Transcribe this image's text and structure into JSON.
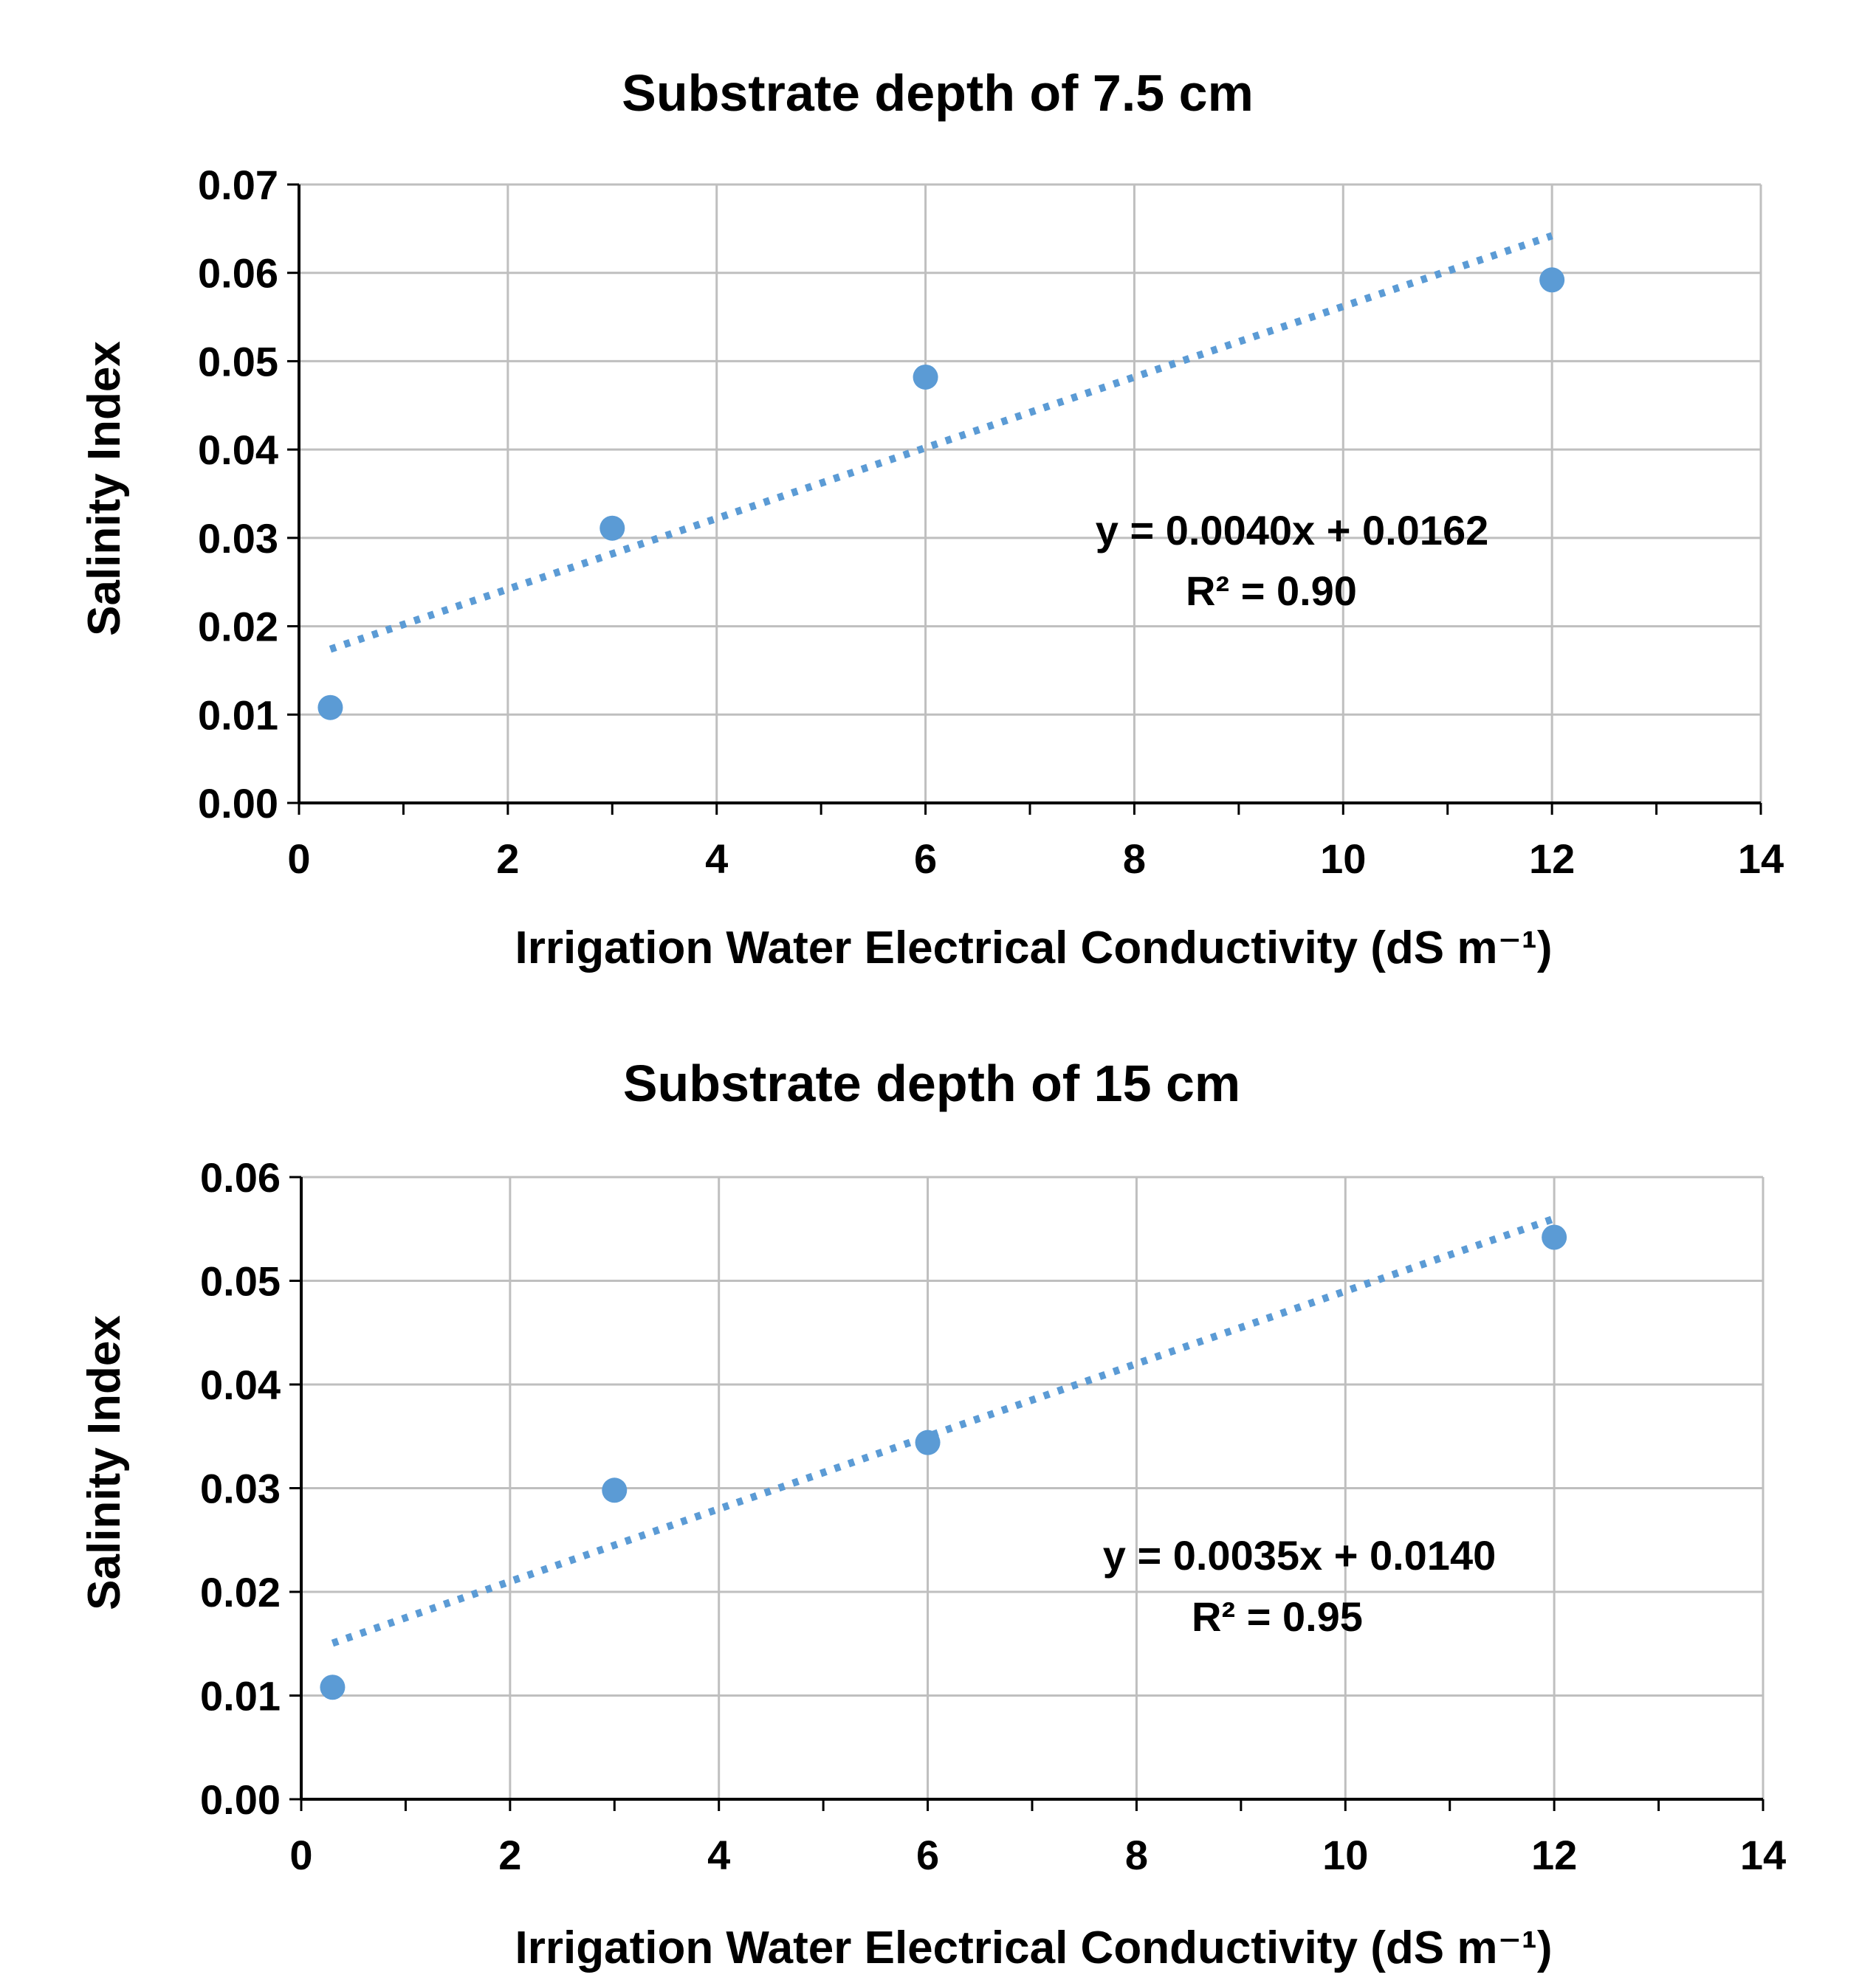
{
  "colors": {
    "marker": "#5B9BD5",
    "trendline": "#5B9BD5",
    "grid": "#BFBFBF",
    "axis": "#000000",
    "text": "#000000"
  },
  "chart_data": [
    {
      "type": "scatter",
      "title": "Substrate depth of 7.5 cm",
      "xlabel": "Irrigation Water Electrical Conductivity (dS m⁻¹)",
      "ylabel": "Salinity Index",
      "xlim": [
        0,
        14
      ],
      "ylim": [
        0,
        0.07
      ],
      "grid": true,
      "x_ticks": [
        "0",
        "2",
        "4",
        "6",
        "8",
        "10",
        "12",
        "14"
      ],
      "y_ticks": [
        "0.00",
        "0.01",
        "0.02",
        "0.03",
        "0.04",
        "0.05",
        "0.06",
        "0.07"
      ],
      "series": [
        {
          "name": "Salinity Index",
          "x": [
            0.3,
            3,
            6,
            12
          ],
          "y": [
            0.0108,
            0.0311,
            0.0482,
            0.0592
          ]
        }
      ],
      "trendline": {
        "style": "dotted",
        "slope": 0.004,
        "intercept": 0.0162,
        "x_range": [
          0.3,
          12
        ]
      },
      "annotation": {
        "equation": "y = 0.0040x + 0.0162",
        "r2": "R² = 0.90"
      }
    },
    {
      "type": "scatter",
      "title": "Substrate depth of 15 cm",
      "xlabel": "Irrigation Water Electrical Conductivity (dS m⁻¹)",
      "ylabel": "Salinity Index",
      "xlim": [
        0,
        14
      ],
      "ylim": [
        0,
        0.06
      ],
      "grid": true,
      "x_ticks": [
        "0",
        "2",
        "4",
        "6",
        "8",
        "10",
        "12",
        "14"
      ],
      "y_ticks": [
        "0.00",
        "0.01",
        "0.02",
        "0.03",
        "0.04",
        "0.05",
        "0.06"
      ],
      "series": [
        {
          "name": "Salinity Index",
          "x": [
            0.3,
            3,
            6,
            12
          ],
          "y": [
            0.0108,
            0.0298,
            0.0344,
            0.0542
          ]
        }
      ],
      "trendline": {
        "style": "dotted",
        "slope": 0.0035,
        "intercept": 0.014,
        "x_range": [
          0.3,
          12
        ]
      },
      "annotation": {
        "equation": "y = 0.0035x + 0.0140",
        "r2": "R² = 0.95"
      }
    }
  ]
}
